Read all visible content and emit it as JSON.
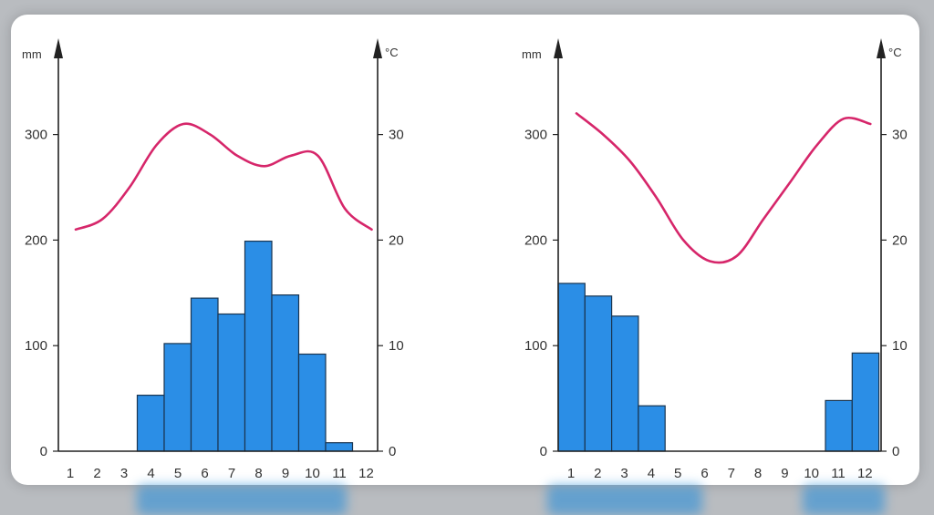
{
  "chart_data": [
    {
      "type": "bar+line",
      "title": "",
      "left_axis_unit": "mm",
      "right_axis_unit": "°C",
      "categories": [
        "1",
        "2",
        "3",
        "4",
        "5",
        "6",
        "7",
        "8",
        "9",
        "10",
        "11",
        "12"
      ],
      "precipitation_mm": [
        0,
        0,
        0,
        53,
        102,
        145,
        130,
        199,
        148,
        92,
        8,
        0
      ],
      "temperature_c": [
        21,
        22,
        25,
        29,
        31,
        30,
        28,
        27,
        28,
        28,
        23,
        21
      ],
      "left_ticks": [
        "0",
        "100",
        "200",
        "300"
      ],
      "right_ticks": [
        "0",
        "10",
        "20",
        "30"
      ],
      "left_ylim": [
        0,
        300
      ],
      "right_ylim": [
        0,
        30
      ],
      "bar_color": "#2b8ee6",
      "line_color": "#d6266a"
    },
    {
      "type": "bar+line",
      "title": "",
      "left_axis_unit": "mm",
      "right_axis_unit": "°C",
      "categories": [
        "1",
        "2",
        "3",
        "4",
        "5",
        "6",
        "7",
        "8",
        "9",
        "10",
        "11",
        "12"
      ],
      "precipitation_mm": [
        159,
        147,
        128,
        43,
        0,
        0,
        0,
        0,
        0,
        0,
        48,
        93
      ],
      "temperature_c": [
        32,
        30,
        27.5,
        24,
        20,
        18,
        18.5,
        22,
        25.5,
        29,
        31.5,
        31
      ],
      "left_ticks": [
        "0",
        "100",
        "200",
        "300"
      ],
      "right_ticks": [
        "0",
        "10",
        "20",
        "30"
      ],
      "left_ylim": [
        0,
        300
      ],
      "right_ylim": [
        0,
        30
      ],
      "bar_color": "#2b8ee6",
      "line_color": "#d6266a"
    }
  ]
}
